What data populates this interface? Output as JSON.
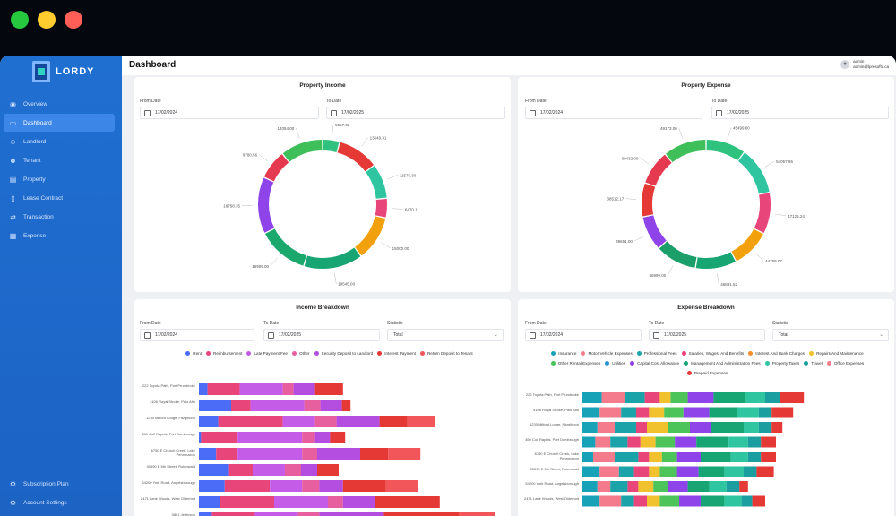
{
  "window_controls": {
    "close_color": "#27c93f",
    "minimize_color": "#ffcc2f",
    "maximize_color": "#ff5f57"
  },
  "app": {
    "brand": "LORDY"
  },
  "sidebar": {
    "items": [
      {
        "label": "Overview",
        "icon": "eye-icon",
        "active": false
      },
      {
        "label": "Dashboard",
        "icon": "monitor-icon",
        "active": true
      },
      {
        "label": "Landlord",
        "icon": "user-icon",
        "active": false
      },
      {
        "label": "Tenant",
        "icon": "users-icon",
        "active": false
      },
      {
        "label": "Property",
        "icon": "building-icon",
        "active": false
      },
      {
        "label": "Lease Contract",
        "icon": "document-icon",
        "active": false
      },
      {
        "label": "Transaction",
        "icon": "exchange-icon",
        "active": false
      },
      {
        "label": "Expense",
        "icon": "receipt-icon",
        "active": false
      }
    ],
    "bottom": [
      {
        "label": "Subscription Plan",
        "icon": "gear-icon"
      },
      {
        "label": "Account Settings",
        "icon": "settings-icon"
      }
    ]
  },
  "header": {
    "title": "Dashboard",
    "user_name": "admin",
    "user_email": "admin@lpresoftc.ca"
  },
  "property_income": {
    "title": "Property Income",
    "from_label": "From Date",
    "from_value": "17/02/2024",
    "to_label": "To Date",
    "to_value": "17/02/2025",
    "chart_data": {
      "type": "pie",
      "labels": [
        "5657.02",
        "13649.31",
        "11575.30",
        "6470.11",
        "15000.00",
        "19545.00",
        "16909.00",
        "18758.35",
        "9780.56",
        "14054.00"
      ],
      "values": [
        5657.02,
        13649.31,
        11575.3,
        6470.11,
        15000.0,
        19545.0,
        16909.0,
        18758.35,
        9780.56,
        14054.0
      ],
      "colors": [
        "#2ec27e",
        "#e53935",
        "#2ec5a0",
        "#e8457a",
        "#f2a10d",
        "#17a673",
        "#1ba86d",
        "#8e44e8",
        "#e53950",
        "#3fbf5a"
      ]
    }
  },
  "property_expense": {
    "title": "Property Expense",
    "from_label": "From Date",
    "from_value": "17/02/2024",
    "to_label": "To Date",
    "to_value": "17/02/2025",
    "chart_data": {
      "type": "pie",
      "labels": [
        "45499.00",
        "54057.95",
        "47126.24",
        "44258.07",
        "46831.52",
        "46999.00",
        "39651.00",
        "38512.17",
        "39432.00",
        "49173.00"
      ],
      "values": [
        45499.0,
        54057.95,
        47126.24,
        44258.07,
        46831.52,
        46999.0,
        39651.0,
        38512.17,
        39432.0,
        49173.0
      ],
      "colors": [
        "#2ec27e",
        "#2ec5a0",
        "#e8457a",
        "#f2a10d",
        "#17a673",
        "#1b9e6a",
        "#8e44e8",
        "#e53935",
        "#e53950",
        "#3fbf5a"
      ]
    }
  },
  "income_breakdown": {
    "title": "Income Breakdown",
    "from_label": "From Date",
    "from_value": "17/02/2024",
    "to_label": "To Date",
    "to_value": "17/02/2025",
    "statistic_label": "Statistic",
    "statistic_value": "Total",
    "legend": [
      {
        "name": "Rent",
        "color": "#4a6cf7"
      },
      {
        "name": "Reimbursement",
        "color": "#e8457a"
      },
      {
        "name": "Late Payment Fee",
        "color": "#c45ce8"
      },
      {
        "name": "Other",
        "color": "#e85fa0"
      },
      {
        "name": "Security Deposit to Landlord",
        "color": "#b34ee0"
      },
      {
        "name": "Interest Payment",
        "color": "#e53935"
      },
      {
        "name": "Return Deposit to Tenant",
        "color": "#f2555a"
      }
    ],
    "chart_data": {
      "type": "bar",
      "orientation": "horizontal",
      "stacked": true,
      "categories": [
        "222 Toyota Path, Port Prumbroke",
        "4106 Royal Stroke, Palo Alto",
        "1230 Milford Lodge, Fitzgibbon",
        "450 Coll Rapids, Port Dumbrough",
        "6750 E Church Creek, Lake Pennmaxon",
        "30590 E 5th Street, Rotenwald",
        "54200 York Road, Angelsborough",
        "2471 Lane Woods, West Olderholt",
        "9881 Jefferson"
      ],
      "series": [
        {
          "name": "Rent",
          "values": [
            8,
            30,
            18,
            2,
            16,
            28,
            24,
            20,
            12
          ]
        },
        {
          "name": "Reimbursement",
          "values": [
            30,
            18,
            60,
            34,
            20,
            22,
            42,
            50,
            40
          ]
        },
        {
          "name": "Late Payment Fee",
          "values": [
            40,
            50,
            30,
            60,
            60,
            30,
            30,
            50,
            40
          ]
        },
        {
          "name": "Other",
          "values": [
            10,
            15,
            20,
            12,
            14,
            15,
            16,
            14,
            20
          ]
        },
        {
          "name": "Security Deposit to Landlord",
          "values": [
            20,
            20,
            40,
            14,
            40,
            15,
            22,
            30,
            60
          ]
        },
        {
          "name": "Interest Payment",
          "values": [
            26,
            8,
            26,
            14,
            26,
            20,
            40,
            60,
            70
          ]
        },
        {
          "name": "Return Deposit to Tenant",
          "values": [
            0,
            0,
            26,
            0,
            30,
            0,
            30,
            0,
            80
          ]
        }
      ]
    }
  },
  "expense_breakdown": {
    "title": "Expense Breakdown",
    "from_label": "From Date",
    "from_value": "17/02/2024",
    "to_label": "To Date",
    "to_value": "17/02/2025",
    "statistic_label": "Statistic",
    "statistic_value": "Total",
    "legend": [
      {
        "name": "Insurance",
        "color": "#17a2b8"
      },
      {
        "name": "Motor Vehicle Expenses",
        "color": "#f47b8b"
      },
      {
        "name": "Professional Fees",
        "color": "#1aa3a8"
      },
      {
        "name": "Salaries, Wages, And Benefits",
        "color": "#e8457a"
      },
      {
        "name": "Interest And Bank Charges",
        "color": "#f28c28"
      },
      {
        "name": "Repairs And Maintenance",
        "color": "#f2c12e"
      },
      {
        "name": "Other Rental Expenses",
        "color": "#4cc45a"
      },
      {
        "name": "Utilities",
        "color": "#2b8fd6"
      },
      {
        "name": "Capital Cost Allowance",
        "color": "#8e44e8"
      },
      {
        "name": "Management And Administration Fees",
        "color": "#17a673"
      },
      {
        "name": "Property Taxes",
        "color": "#2ec5a0"
      },
      {
        "name": "Travel",
        "color": "#1b9ea0"
      },
      {
        "name": "Office Expenses",
        "color": "#f47b8b"
      },
      {
        "name": "Prepaid Expenses",
        "color": "#e53935"
      }
    ],
    "chart_data": {
      "type": "bar",
      "orientation": "horizontal",
      "stacked": true,
      "categories": [
        "222 Toyota Path, Port Prumbroke",
        "4106 Royal Stroke, Palo Alto",
        "1230 Milford Lodge, Fitzgibbon",
        "450 Coll Rapids, Port Dumbrough",
        "6750 E Church Creek, Lake Pennmaxon",
        "30590 E 5th Street, Rotenwald",
        "54200 York Road, Angelsborough",
        "2471 Lane Woods, West Olderholt"
      ],
      "series": [
        {
          "name": "Insurance",
          "values": [
            18,
            16,
            14,
            12,
            10,
            16,
            14,
            16
          ]
        },
        {
          "name": "Motor Vehicle Expenses",
          "values": [
            22,
            20,
            16,
            14,
            20,
            18,
            12,
            20
          ]
        },
        {
          "name": "Professional Fees",
          "values": [
            18,
            14,
            20,
            16,
            22,
            14,
            16,
            12
          ]
        },
        {
          "name": "Salaries, Wages, And Benefits",
          "values": [
            14,
            12,
            10,
            12,
            10,
            14,
            10,
            12
          ]
        },
        {
          "name": "Repairs And Maintenance",
          "values": [
            10,
            14,
            20,
            14,
            12,
            10,
            14,
            12
          ]
        },
        {
          "name": "Other Rental Expenses",
          "values": [
            16,
            18,
            20,
            18,
            14,
            16,
            14,
            18
          ]
        },
        {
          "name": "Capital Cost Allowance",
          "values": [
            24,
            24,
            20,
            20,
            22,
            20,
            18,
            20
          ]
        },
        {
          "name": "Management And Administration Fees",
          "values": [
            30,
            26,
            30,
            30,
            28,
            24,
            20,
            22
          ]
        },
        {
          "name": "Property Taxes",
          "values": [
            18,
            20,
            14,
            18,
            16,
            18,
            16,
            16
          ]
        },
        {
          "name": "Travel",
          "values": [
            14,
            12,
            12,
            12,
            12,
            12,
            12,
            10
          ]
        },
        {
          "name": "Prepaid Expenses",
          "values": [
            22,
            20,
            10,
            14,
            14,
            16,
            8,
            12
          ]
        }
      ]
    }
  }
}
